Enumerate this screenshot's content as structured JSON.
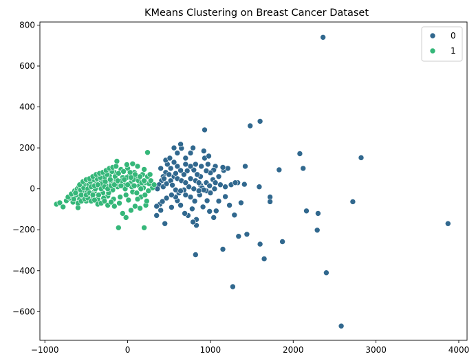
{
  "chart_data": {
    "type": "scatter",
    "title": "KMeans Clustering on Breast Cancer Dataset",
    "xlabel": "",
    "ylabel": "",
    "xlim": [
      -1060,
      4100
    ],
    "ylim": [
      -740,
      815
    ],
    "xticks": [
      -1000,
      0,
      1000,
      2000,
      3000,
      4000
    ],
    "yticks": [
      -600,
      -400,
      -200,
      0,
      200,
      400,
      600,
      800
    ],
    "xtick_labels": [
      "−1000",
      "0",
      "1000",
      "2000",
      "3000",
      "4000"
    ],
    "ytick_labels": [
      "−600",
      "−400",
      "−200",
      "0",
      "200",
      "400",
      "600",
      "800"
    ],
    "grid": false,
    "legend_position": "top-right",
    "series": [
      {
        "name": "0",
        "color": "#31688e",
        "points": [
          [
            2360,
            740
          ],
          [
            1600,
            330
          ],
          [
            1480,
            308
          ],
          [
            930,
            288
          ],
          [
            2820,
            152
          ],
          [
            2080,
            172
          ],
          [
            2120,
            100
          ],
          [
            1830,
            93
          ],
          [
            1420,
            110
          ],
          [
            3870,
            -170
          ],
          [
            2720,
            -63
          ],
          [
            2300,
            -120
          ],
          [
            2160,
            -108
          ],
          [
            1720,
            -40
          ],
          [
            1720,
            -63
          ],
          [
            1590,
            10
          ],
          [
            1410,
            22
          ],
          [
            1330,
            30
          ],
          [
            2290,
            -202
          ],
          [
            1870,
            -258
          ],
          [
            1600,
            -270
          ],
          [
            1440,
            -222
          ],
          [
            1340,
            -232
          ],
          [
            2400,
            -410
          ],
          [
            1650,
            -342
          ],
          [
            1150,
            -295
          ],
          [
            820,
            -322
          ],
          [
            1270,
            -478
          ],
          [
            2580,
            -670
          ],
          [
            1370,
            -68
          ],
          [
            1290,
            -128
          ],
          [
            1230,
            -80
          ],
          [
            1180,
            -38
          ],
          [
            1100,
            -60
          ],
          [
            1070,
            -108
          ],
          [
            1040,
            -140
          ],
          [
            990,
            -110
          ],
          [
            960,
            -58
          ],
          [
            910,
            -88
          ],
          [
            830,
            -150
          ],
          [
            830,
            -178
          ],
          [
            790,
            -162
          ],
          [
            780,
            -98
          ],
          [
            730,
            -130
          ],
          [
            690,
            -120
          ],
          [
            640,
            -80
          ],
          [
            600,
            -58
          ],
          [
            580,
            -40
          ],
          [
            530,
            -90
          ],
          [
            450,
            -170
          ],
          [
            400,
            -105
          ],
          [
            390,
            -75
          ],
          [
            350,
            -130
          ],
          [
            350,
            -85
          ],
          [
            420,
            -62
          ],
          [
            470,
            -45
          ],
          [
            530,
            -30
          ],
          [
            620,
            -20
          ],
          [
            680,
            -5
          ],
          [
            740,
            10
          ],
          [
            800,
            0
          ],
          [
            880,
            18
          ],
          [
            950,
            30
          ],
          [
            1030,
            45
          ],
          [
            1100,
            60
          ],
          [
            1160,
            90
          ],
          [
            1210,
            100
          ],
          [
            1150,
            105
          ],
          [
            1060,
            110
          ],
          [
            970,
            120
          ],
          [
            930,
            150
          ],
          [
            890,
            110
          ],
          [
            820,
            120
          ],
          [
            760,
            175
          ],
          [
            700,
            150
          ],
          [
            650,
            198
          ],
          [
            600,
            175
          ],
          [
            560,
            200
          ],
          [
            640,
            218
          ],
          [
            790,
            200
          ],
          [
            920,
            185
          ],
          [
            980,
            160
          ],
          [
            1040,
            92
          ],
          [
            1000,
            78
          ],
          [
            950,
            88
          ],
          [
            880,
            60
          ],
          [
            840,
            70
          ],
          [
            800,
            92
          ],
          [
            760,
            110
          ],
          [
            720,
            88
          ],
          [
            680,
            70
          ],
          [
            640,
            90
          ],
          [
            600,
            110
          ],
          [
            560,
            130
          ],
          [
            520,
            100
          ],
          [
            480,
            120
          ],
          [
            460,
            80
          ],
          [
            430,
            60
          ],
          [
            410,
            40
          ],
          [
            380,
            20
          ],
          [
            360,
            0
          ],
          [
            430,
            10
          ],
          [
            470,
            25
          ],
          [
            520,
            40
          ],
          [
            560,
            60
          ],
          [
            600,
            50
          ],
          [
            650,
            40
          ],
          [
            700,
            30
          ],
          [
            760,
            50
          ],
          [
            820,
            40
          ],
          [
            860,
            30
          ],
          [
            900,
            5
          ],
          [
            950,
            -10
          ],
          [
            1000,
            -20
          ],
          [
            1050,
            0
          ],
          [
            1120,
            20
          ],
          [
            1180,
            10
          ],
          [
            1250,
            20
          ],
          [
            1300,
            30
          ],
          [
            440,
            50
          ],
          [
            500,
            70
          ],
          [
            540,
            18
          ],
          [
            580,
            -5
          ],
          [
            640,
            -10
          ],
          [
            700,
            -30
          ],
          [
            760,
            -40
          ],
          [
            810,
            -60
          ],
          [
            870,
            -30
          ],
          [
            920,
            -5
          ],
          [
            990,
            15
          ],
          [
            1060,
            30
          ],
          [
            400,
            100
          ],
          [
            460,
            140
          ],
          [
            510,
            150
          ],
          [
            580,
            75
          ],
          [
            700,
            120
          ],
          [
            860,
            -10
          ]
        ]
      },
      {
        "name": "1",
        "color": "#35b779",
        "points": [
          [
            -860,
            -75
          ],
          [
            -820,
            -68
          ],
          [
            -780,
            -88
          ],
          [
            -740,
            -58
          ],
          [
            -700,
            -45
          ],
          [
            -660,
            -65
          ],
          [
            -620,
            -30
          ],
          [
            -600,
            -92
          ],
          [
            -580,
            -50
          ],
          [
            -560,
            -18
          ],
          [
            -540,
            -35
          ],
          [
            -520,
            -8
          ],
          [
            -500,
            -60
          ],
          [
            -480,
            -22
          ],
          [
            -460,
            5
          ],
          [
            -440,
            -40
          ],
          [
            -420,
            18
          ],
          [
            -400,
            -12
          ],
          [
            -380,
            30
          ],
          [
            -360,
            -50
          ],
          [
            -340,
            10
          ],
          [
            -320,
            40
          ],
          [
            -300,
            -20
          ],
          [
            -280,
            55
          ],
          [
            -260,
            15
          ],
          [
            -240,
            -35
          ],
          [
            -220,
            65
          ],
          [
            -200,
            30
          ],
          [
            -180,
            -5
          ],
          [
            -160,
            80
          ],
          [
            -140,
            45
          ],
          [
            -120,
            10
          ],
          [
            -100,
            -70
          ],
          [
            -80,
            95
          ],
          [
            -60,
            55
          ],
          [
            -40,
            20
          ],
          [
            -20,
            -30
          ],
          [
            0,
            100
          ],
          [
            20,
            65
          ],
          [
            40,
            30
          ],
          [
            60,
            -15
          ],
          [
            80,
            80
          ],
          [
            100,
            50
          ],
          [
            120,
            110
          ],
          [
            140,
            15
          ],
          [
            160,
            -40
          ],
          [
            180,
            70
          ],
          [
            200,
            95
          ],
          [
            220,
            30
          ],
          [
            240,
            60
          ],
          [
            260,
            25
          ],
          [
            280,
            40
          ],
          [
            300,
            5
          ],
          [
            320,
            20
          ],
          [
            -130,
            135
          ],
          [
            -110,
            -190
          ],
          [
            200,
            -190
          ],
          [
            240,
            178
          ],
          [
            -10,
            118
          ],
          [
            60,
            122
          ],
          [
            -60,
            -120
          ],
          [
            -20,
            -140
          ],
          [
            40,
            -105
          ],
          [
            90,
            -85
          ],
          [
            150,
            -95
          ],
          [
            220,
            -80
          ],
          [
            -720,
            -40
          ],
          [
            -680,
            -25
          ],
          [
            -640,
            -10
          ],
          [
            -610,
            0
          ],
          [
            -590,
            10
          ],
          [
            -570,
            -5
          ],
          [
            -550,
            15
          ],
          [
            -530,
            5
          ],
          [
            -510,
            25
          ],
          [
            -490,
            -15
          ],
          [
            -470,
            20
          ],
          [
            -450,
            35
          ],
          [
            -430,
            -25
          ],
          [
            -410,
            45
          ],
          [
            -390,
            0
          ],
          [
            -370,
            50
          ],
          [
            -350,
            -30
          ],
          [
            -330,
            55
          ],
          [
            -310,
            25
          ],
          [
            -290,
            -45
          ],
          [
            -270,
            35
          ],
          [
            -250,
            70
          ],
          [
            -230,
            -20
          ],
          [
            -210,
            45
          ],
          [
            -190,
            85
          ],
          [
            -170,
            -50
          ],
          [
            -150,
            60
          ],
          [
            -130,
            25
          ],
          [
            -110,
            75
          ],
          [
            -90,
            -40
          ],
          [
            -70,
            40
          ],
          [
            -50,
            85
          ],
          [
            -30,
            0
          ],
          [
            -10,
            55
          ],
          [
            10,
            -55
          ],
          [
            30,
            80
          ],
          [
            50,
            10
          ],
          [
            70,
            45
          ],
          [
            90,
            70
          ],
          [
            110,
            -20
          ],
          [
            130,
            40
          ],
          [
            150,
            60
          ],
          [
            170,
            30
          ],
          [
            190,
            5
          ],
          [
            210,
            -30
          ],
          [
            230,
            -60
          ],
          [
            250,
            -10
          ],
          [
            270,
            70
          ],
          [
            -600,
            -70
          ],
          [
            -560,
            -60
          ],
          [
            -520,
            -50
          ],
          [
            -480,
            -45
          ],
          [
            -440,
            -60
          ],
          [
            -400,
            -55
          ],
          [
            -360,
            -75
          ],
          [
            -320,
            -70
          ],
          [
            -280,
            -60
          ],
          [
            -240,
            -80
          ],
          [
            -200,
            -65
          ],
          [
            -160,
            -85
          ],
          [
            -580,
            20
          ],
          [
            -540,
            35
          ],
          [
            -500,
            45
          ],
          [
            -460,
            50
          ],
          [
            -420,
            60
          ],
          [
            -380,
            70
          ],
          [
            -340,
            75
          ],
          [
            -300,
            80
          ],
          [
            -260,
            90
          ],
          [
            -220,
            100
          ],
          [
            -180,
            105
          ],
          [
            -140,
            110
          ],
          [
            -480,
            0
          ],
          [
            -440,
            10
          ],
          [
            -400,
            15
          ],
          [
            -360,
            20
          ],
          [
            -320,
            0
          ],
          [
            -280,
            10
          ],
          [
            -240,
            0
          ],
          [
            -200,
            15
          ],
          [
            -160,
            20
          ],
          [
            -120,
            40
          ],
          [
            -80,
            15
          ],
          [
            -40,
            45
          ],
          [
            0,
            20
          ],
          [
            40,
            55
          ],
          [
            80,
            15
          ],
          [
            120,
            -50
          ],
          [
            160,
            0
          ],
          [
            200,
            40
          ],
          [
            -650,
            -50
          ],
          [
            -630,
            -20
          ],
          [
            -560,
            -30
          ],
          [
            -500,
            -30
          ],
          [
            -460,
            -20
          ],
          [
            -420,
            -30
          ]
        ]
      }
    ]
  }
}
